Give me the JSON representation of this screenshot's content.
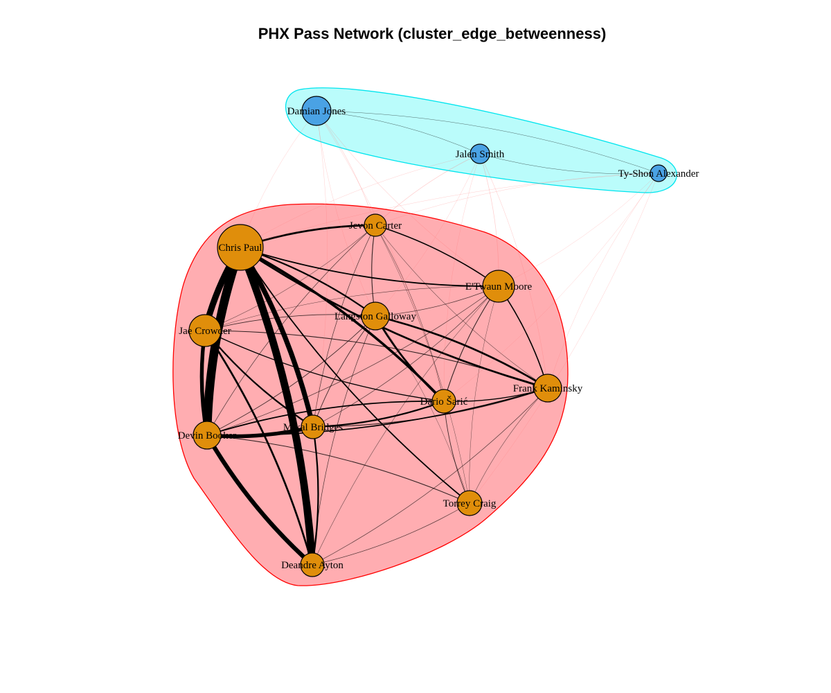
{
  "title": "PHX Pass Network (cluster_edge_betweenness)",
  "colors": {
    "cluster1_fill": "#ff9fa3",
    "cluster1_border": "#ff0000",
    "cluster2_fill": "#b3fcfb",
    "cluster2_border": "#00e5ee",
    "cluster1_node": "#e08e0b",
    "cluster2_node": "#4aa2e4",
    "intra_edge": "#000000",
    "inter_edge": "#ff6f6f"
  },
  "nodes": [
    {
      "name": "Chris Paul",
      "cluster": 1,
      "size": 33
    },
    {
      "name": "Jevon Carter",
      "cluster": 1,
      "size": 16
    },
    {
      "name": "E'Twaun Moore",
      "cluster": 1,
      "size": 23
    },
    {
      "name": "Langston Galloway",
      "cluster": 1,
      "size": 20
    },
    {
      "name": "Jae Crowder",
      "cluster": 1,
      "size": 23
    },
    {
      "name": "Frank Kaminsky",
      "cluster": 1,
      "size": 20
    },
    {
      "name": "Dario Šarić",
      "cluster": 1,
      "size": 17
    },
    {
      "name": "Mikal Bridges",
      "cluster": 1,
      "size": 17
    },
    {
      "name": "Devin Booker",
      "cluster": 1,
      "size": 20
    },
    {
      "name": "Torrey Craig",
      "cluster": 1,
      "size": 18
    },
    {
      "name": "Deandre Ayton",
      "cluster": 1,
      "size": 17
    },
    {
      "name": "Damian Jones",
      "cluster": 2,
      "size": 21
    },
    {
      "name": "Jalen Smith",
      "cluster": 2,
      "size": 14
    },
    {
      "name": "Ty-Shon Alexander",
      "cluster": 2,
      "size": 12
    }
  ],
  "edges": [
    [
      "Chris Paul",
      "Devin Booker",
      14
    ],
    [
      "Chris Paul",
      "Deandre Ayton",
      12
    ],
    [
      "Chris Paul",
      "Jae Crowder",
      10
    ],
    [
      "Chris Paul",
      "Mikal Bridges",
      8
    ],
    [
      "Devin Booker",
      "Deandre Ayton",
      7
    ],
    [
      "Devin Booker",
      "Jae Crowder",
      6
    ],
    [
      "Devin Booker",
      "Mikal Bridges",
      6
    ],
    [
      "Chris Paul",
      "Dario Šarić",
      4
    ],
    [
      "Chris Paul",
      "Frank Kaminsky",
      3
    ],
    [
      "Chris Paul",
      "Jevon Carter",
      3
    ],
    [
      "Chris Paul",
      "E'Twaun Moore",
      2
    ],
    [
      "Chris Paul",
      "Langston Galloway",
      2.5
    ],
    [
      "Chris Paul",
      "Torrey Craig",
      2
    ],
    [
      "Langston Galloway",
      "Frank Kaminsky",
      3
    ],
    [
      "Langston Galloway",
      "Dario Šarić",
      3
    ],
    [
      "Jae Crowder",
      "Deandre Ayton",
      3
    ],
    [
      "Jae Crowder",
      "Mikal Bridges",
      2.5
    ],
    [
      "Mikal Bridges",
      "Deandre Ayton",
      2.5
    ],
    [
      "Mikal Bridges",
      "Dario Šarić",
      2.5
    ],
    [
      "Devin Booker",
      "Dario Šarić",
      2
    ],
    [
      "Devin Booker",
      "Frank Kaminsky",
      1.8
    ],
    [
      "Jevon Carter",
      "E'Twaun Moore",
      1.8
    ],
    [
      "Jevon Carter",
      "Langston Galloway",
      1.2
    ],
    [
      "E'Twaun Moore",
      "Frank Kaminsky",
      1.8
    ],
    [
      "E'Twaun Moore",
      "Dario Šarić",
      1.2
    ],
    [
      "Frank Kaminsky",
      "Dario Šarić",
      1.5
    ],
    [
      "Jae Crowder",
      "Dario Šarić",
      1.5
    ],
    [
      "Jae Crowder",
      "Frank Kaminsky",
      1.2
    ],
    [
      "Torrey Craig",
      "Devin Booker",
      1.2
    ],
    [
      "Torrey Craig",
      "Dario Šarić",
      1
    ],
    [
      "Deandre Ayton",
      "Torrey Craig",
      0.8
    ],
    [
      "Deandre Ayton",
      "Langston Galloway",
      0.8
    ],
    [
      "Deandre Ayton",
      "Frank Kaminsky",
      0.8
    ],
    [
      "Deandre Ayton",
      "E'Twaun Moore",
      0.6
    ],
    [
      "Mikal Bridges",
      "Frank Kaminsky",
      1.2
    ],
    [
      "Mikal Bridges",
      "Langston Galloway",
      1
    ],
    [
      "Mikal Bridges",
      "E'Twaun Moore",
      0.8
    ],
    [
      "Mikal Bridges",
      "Jevon Carter",
      0.8
    ],
    [
      "Devin Booker",
      "Langston Galloway",
      1
    ],
    [
      "Devin Booker",
      "Jevon Carter",
      0.8
    ],
    [
      "Devin Booker",
      "E'Twaun Moore",
      0.8
    ],
    [
      "Jae Crowder",
      "Langston Galloway",
      1
    ],
    [
      "Jae Crowder",
      "Jevon Carter",
      0.6
    ],
    [
      "Jae Crowder",
      "E'Twaun Moore",
      0.6
    ],
    [
      "Langston Galloway",
      "E'Twaun Moore",
      0.8
    ],
    [
      "Jevon Carter",
      "Dario Šarić",
      0.6
    ],
    [
      "Jevon Carter",
      "Frank Kaminsky",
      0.6
    ],
    [
      "Torrey Craig",
      "Frank Kaminsky",
      0.6
    ],
    [
      "Torrey Craig",
      "Jevon Carter",
      0.4
    ],
    [
      "Torrey Craig",
      "E'Twaun Moore",
      0.4
    ],
    [
      "Torrey Craig",
      "Langston Galloway",
      0.4
    ],
    [
      "Damian Jones",
      "Jalen Smith",
      0.5
    ],
    [
      "Jalen Smith",
      "Ty-Shon Alexander",
      0.5
    ],
    [
      "Damian Jones",
      "Ty-Shon Alexander",
      0.4
    ],
    [
      "Damian Jones",
      "Chris Paul",
      0.5
    ],
    [
      "Damian Jones",
      "Jevon Carter",
      0.7
    ],
    [
      "Damian Jones",
      "E'Twaun Moore",
      0.6
    ],
    [
      "Damian Jones",
      "Dario Šarić",
      0.4
    ],
    [
      "Damian Jones",
      "Langston Galloway",
      0.4
    ],
    [
      "Damian Jones",
      "Mikal Bridges",
      0.3
    ],
    [
      "Jalen Smith",
      "Jevon Carter",
      0.8
    ],
    [
      "Jalen Smith",
      "E'Twaun Moore",
      0.8
    ],
    [
      "Jalen Smith",
      "Chris Paul",
      0.5
    ],
    [
      "Jalen Smith",
      "Frank Kaminsky",
      0.6
    ],
    [
      "Jalen Smith",
      "Dario Šarić",
      0.5
    ],
    [
      "Jalen Smith",
      "Langston Galloway",
      0.4
    ],
    [
      "Ty-Shon Alexander",
      "Jevon Carter",
      0.6
    ],
    [
      "Ty-Shon Alexander",
      "E'Twaun Moore",
      0.5
    ],
    [
      "Ty-Shon Alexander",
      "Frank Kaminsky",
      0.4
    ],
    [
      "Ty-Shon Alexander",
      "Dario Šarić",
      0.3
    ],
    [
      "Ty-Shon Alexander",
      "Chris Paul",
      0.3
    ],
    [
      "Ty-Shon Alexander",
      "Torrey Craig",
      0.3
    ]
  ]
}
